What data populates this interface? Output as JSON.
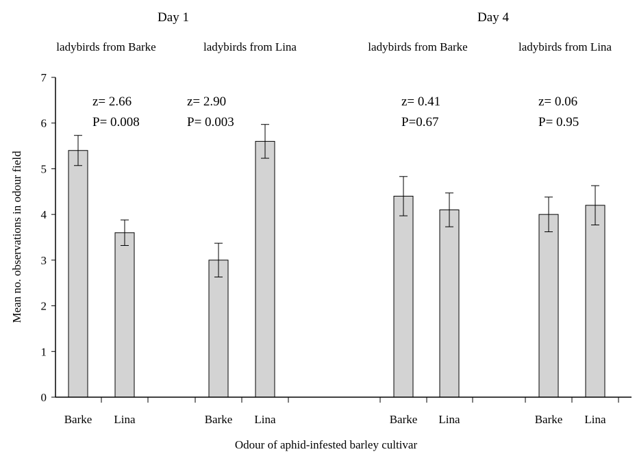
{
  "chart_data": {
    "type": "bar",
    "xlabel": "Odour of aphid-infested barley cultivar",
    "ylabel": "Mean no. observations in odour field",
    "ylim": [
      0,
      7
    ],
    "yticks": [
      "0",
      "1",
      "2",
      "3",
      "4",
      "5",
      "6",
      "7"
    ],
    "grid": false,
    "days": [
      {
        "label": "Day 1"
      },
      {
        "label": "Day 4"
      }
    ],
    "groups": [
      {
        "day": 0,
        "label": "ladybirds from Barke",
        "z": "z= 2.66",
        "p": "P= 0.008",
        "bars": [
          {
            "category": "Barke",
            "value": 5.4,
            "error": 0.33
          },
          {
            "category": "Lina",
            "value": 3.6,
            "error": 0.28
          }
        ]
      },
      {
        "day": 0,
        "label": "ladybirds from Lina",
        "z": "z= 2.90",
        "p": "P= 0.003",
        "bars": [
          {
            "category": "Barke",
            "value": 3.0,
            "error": 0.37
          },
          {
            "category": "Lina",
            "value": 5.6,
            "error": 0.37
          }
        ]
      },
      {
        "day": 1,
        "label": "ladybirds from Barke",
        "z": "z= 0.41",
        "p": "P=0.67",
        "bars": [
          {
            "category": "Barke",
            "value": 4.4,
            "error": 0.43
          },
          {
            "category": "Lina",
            "value": 4.1,
            "error": 0.37
          }
        ]
      },
      {
        "day": 1,
        "label": "ladybirds from Lina",
        "z": "z= 0.06",
        "p": "P= 0.95",
        "bars": [
          {
            "category": "Barke",
            "value": 4.0,
            "error": 0.38
          },
          {
            "category": "Lina",
            "value": 4.2,
            "error": 0.43
          }
        ]
      }
    ]
  }
}
